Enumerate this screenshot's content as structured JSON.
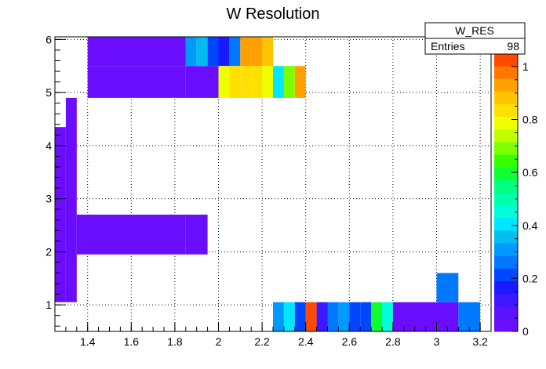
{
  "chart_data": {
    "type": "heatmap",
    "title": "W Resolution",
    "xlabel": "",
    "ylabel": "",
    "xlim": [
      1.25,
      3.25
    ],
    "ylim": [
      0.5,
      6.05
    ],
    "x_ticks": [
      1.4,
      1.6,
      1.8,
      2,
      2.2,
      2.4,
      2.6,
      2.8,
      3,
      3.2
    ],
    "x_tick_labels": [
      "1.4",
      "1.6",
      "1.8",
      "2",
      "2.2",
      "2.4",
      "2.6",
      "2.8",
      "3",
      "3.2"
    ],
    "y_ticks": [
      1,
      2,
      3,
      4,
      5,
      6
    ],
    "y_tick_labels": [
      "1",
      "2",
      "3",
      "4",
      "5",
      "6"
    ],
    "grid": true,
    "z_range": [
      0,
      1.05
    ],
    "z_ticks": [
      0,
      0.2,
      0.4,
      0.6,
      0.8,
      1
    ],
    "z_tick_labels": [
      "0",
      "0.2",
      "0.4",
      "0.6",
      "0.8",
      "1"
    ],
    "palette": [
      "#6a0dff",
      "#5a12ff",
      "#3d17ff",
      "#1a1aff",
      "#0046ff",
      "#0078ff",
      "#0099ff",
      "#00bdf0",
      "#00e6ff",
      "#00ffd8",
      "#00ffae",
      "#00ff80",
      "#10ff30",
      "#35ff00",
      "#7cff00",
      "#bfff00",
      "#f0ff00",
      "#ffe000",
      "#ffc400",
      "#ffa000",
      "#ff7800",
      "#ff4a00"
    ],
    "cells": [
      {
        "x0": 1.25,
        "x1": 1.3,
        "y0": 1.05,
        "y1": 4.35,
        "z": 0.04
      },
      {
        "x0": 1.3,
        "x1": 1.35,
        "y0": 1.05,
        "y1": 4.9,
        "z": 0.04
      },
      {
        "x0": 1.35,
        "x1": 1.85,
        "y0": 1.95,
        "y1": 2.7,
        "z": 0.04
      },
      {
        "x0": 1.85,
        "x1": 1.95,
        "y0": 1.95,
        "y1": 2.7,
        "z": 0.04
      },
      {
        "x0": 1.4,
        "x1": 1.85,
        "y0": 4.9,
        "y1": 5.5,
        "z": 0.04
      },
      {
        "x0": 1.85,
        "x1": 2.0,
        "y0": 4.9,
        "y1": 5.5,
        "z": 0.04
      },
      {
        "x0": 1.4,
        "x1": 1.85,
        "y0": 5.5,
        "y1": 6.05,
        "z": 0.04
      },
      {
        "x0": 1.85,
        "x1": 1.9,
        "y0": 5.5,
        "y1": 6.05,
        "z": 0.3
      },
      {
        "x0": 1.9,
        "x1": 1.95,
        "y0": 5.5,
        "y1": 6.05,
        "z": 0.35
      },
      {
        "x0": 1.95,
        "x1": 2.0,
        "y0": 5.5,
        "y1": 6.05,
        "z": 0.2
      },
      {
        "x0": 2.0,
        "x1": 2.05,
        "y0": 5.5,
        "y1": 6.05,
        "z": 0.15
      },
      {
        "x0": 2.05,
        "x1": 2.1,
        "y0": 5.5,
        "y1": 6.05,
        "z": 0.25
      },
      {
        "x0": 2.1,
        "x1": 2.15,
        "y0": 5.5,
        "y1": 6.05,
        "z": 0.95
      },
      {
        "x0": 2.15,
        "x1": 2.2,
        "y0": 5.5,
        "y1": 6.05,
        "z": 0.95
      },
      {
        "x0": 2.2,
        "x1": 2.25,
        "y0": 5.5,
        "y1": 6.05,
        "z": 0.9
      },
      {
        "x0": 2.0,
        "x1": 2.05,
        "y0": 4.9,
        "y1": 5.5,
        "z": 0.8
      },
      {
        "x0": 2.05,
        "x1": 2.1,
        "y0": 4.9,
        "y1": 5.5,
        "z": 0.85
      },
      {
        "x0": 2.1,
        "x1": 2.15,
        "y0": 4.9,
        "y1": 5.5,
        "z": 0.85
      },
      {
        "x0": 2.15,
        "x1": 2.2,
        "y0": 4.9,
        "y1": 5.5,
        "z": 0.85
      },
      {
        "x0": 2.2,
        "x1": 2.25,
        "y0": 4.9,
        "y1": 5.5,
        "z": 0.8
      },
      {
        "x0": 2.25,
        "x1": 2.3,
        "y0": 4.9,
        "y1": 5.5,
        "z": 0.4
      },
      {
        "x0": 2.3,
        "x1": 2.35,
        "y0": 4.9,
        "y1": 5.5,
        "z": 0.7
      },
      {
        "x0": 2.35,
        "x1": 2.4,
        "y0": 4.9,
        "y1": 5.5,
        "z": 0.95
      },
      {
        "x0": 2.25,
        "x1": 2.3,
        "y0": 0.5,
        "y1": 1.05,
        "z": 0.3
      },
      {
        "x0": 2.3,
        "x1": 2.35,
        "y0": 0.5,
        "y1": 1.05,
        "z": 0.42
      },
      {
        "x0": 2.35,
        "x1": 2.4,
        "y0": 0.5,
        "y1": 1.05,
        "z": 0.2
      },
      {
        "x0": 2.4,
        "x1": 2.45,
        "y0": 0.5,
        "y1": 1.05,
        "z": 1.05
      },
      {
        "x0": 2.45,
        "x1": 2.5,
        "y0": 0.5,
        "y1": 1.05,
        "z": 0.12
      },
      {
        "x0": 2.5,
        "x1": 2.55,
        "y0": 0.5,
        "y1": 1.05,
        "z": 0.25
      },
      {
        "x0": 2.55,
        "x1": 2.6,
        "y0": 0.5,
        "y1": 1.05,
        "z": 0.3
      },
      {
        "x0": 2.6,
        "x1": 2.65,
        "y0": 0.5,
        "y1": 1.05,
        "z": 0.2
      },
      {
        "x0": 2.65,
        "x1": 2.7,
        "y0": 0.5,
        "y1": 1.05,
        "z": 0.2
      },
      {
        "x0": 2.7,
        "x1": 2.75,
        "y0": 0.5,
        "y1": 1.05,
        "z": 0.6
      },
      {
        "x0": 2.75,
        "x1": 2.8,
        "y0": 0.5,
        "y1": 1.05,
        "z": 0.45
      },
      {
        "x0": 2.8,
        "x1": 3.0,
        "y0": 0.5,
        "y1": 1.05,
        "z": 0.04
      },
      {
        "x0": 3.0,
        "x1": 3.1,
        "y0": 0.5,
        "y1": 1.05,
        "z": 0.04
      },
      {
        "x0": 3.1,
        "x1": 3.2,
        "y0": 0.5,
        "y1": 1.05,
        "z": 0.28
      },
      {
        "x0": 3.0,
        "x1": 3.1,
        "y0": 1.05,
        "y1": 1.6,
        "z": 0.28
      }
    ],
    "stats_box": {
      "name": "W_RES",
      "entries_label": "Entries",
      "entries_value": "98"
    }
  }
}
